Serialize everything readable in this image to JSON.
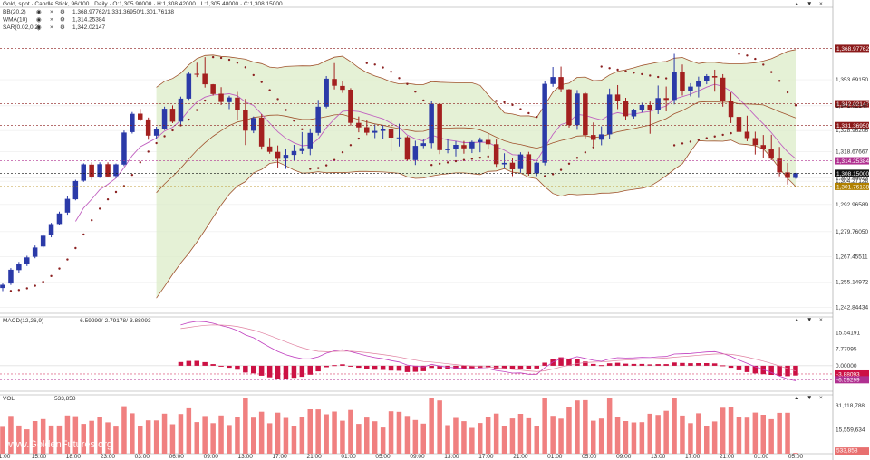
{
  "header": {
    "title": "Gold, spot · Candle Stick, 96/100 · Daily · O:1,305.90000 · H:1,308.42000 · L:1,305.48000 · C:1,308.15000"
  },
  "main_pane": {
    "indicators": [
      {
        "label": "BB(20,2)",
        "value": "1,368.97762/1,331.36950/1,301.76138",
        "color": "#8b2020"
      },
      {
        "label": "WMA(10)",
        "value": "1,314.25384",
        "color": "#c060c0"
      },
      {
        "label": "SAR(0.02,0.2)",
        "value": "1,342.02147",
        "color": "#8b2020"
      }
    ],
    "price_axis": [
      "1,305.89623",
      "1,353.69150",
      "1,341.02147",
      "1,328.96206",
      "1,318.67667",
      "1,304.27128",
      "1,292.96589",
      "1,279.76050",
      "1,267.45511",
      "1,255.14972",
      "1,242.84434"
    ],
    "tags": [
      {
        "text": "1,368.97762",
        "color": "#8b1a1a"
      },
      {
        "text": "1,342.02147",
        "color": "#8b1a1a"
      },
      {
        "text": "1,331.36950",
        "color": "#8b1a1a"
      },
      {
        "text": "1,314.25384",
        "color": "#b03090"
      },
      {
        "text": "1,308.15000",
        "color": "#111111"
      },
      {
        "text": "1,301.76138",
        "color": "#b08000"
      }
    ]
  },
  "macd_pane": {
    "label": "MACD(12,26,9)",
    "value": "-6.59299/-2.79178/-3.88093",
    "axis": [
      "15.54191",
      "7.77095",
      "0.00000"
    ],
    "tags": [
      {
        "text": "-3.88093",
        "color": "#cc1144"
      },
      {
        "text": "-6.59299",
        "color": "#b03090"
      }
    ]
  },
  "vol_pane": {
    "label": "VOL",
    "value": "533,858",
    "axis": [
      "31,118,788",
      "15,559,634"
    ],
    "tag": {
      "text": "533,858",
      "color": "#e87070"
    }
  },
  "time_axis": [
    "1:00",
    "15:00",
    "18:00",
    "23:00",
    "03:00",
    "06:00",
    "09:00",
    "13:00",
    "17:00",
    "21:00",
    "01:00",
    "05:00",
    "09:00",
    "13:00",
    "17:00",
    "21:00",
    "01:00",
    "05:00",
    "09:00",
    "13:00",
    "17:00",
    "21:00",
    "01:00",
    "05:00"
  ],
  "watermark": "www.GoldenFutures.org",
  "icons": [
    "eye-icon",
    "close-icon",
    "gear-icon",
    "arrow-up-icon",
    "arrow-down-icon",
    "close-icon"
  ],
  "chart_data": {
    "type": "candlestick",
    "ylim": [
      1240,
      1389
    ],
    "grid": true,
    "candles": [
      [
        1252.3,
        1254.5,
        1250.8,
        1253.9
      ],
      [
        1254.5,
        1262.0,
        1253.8,
        1261.2
      ],
      [
        1261.0,
        1265.0,
        1259.5,
        1264.1
      ],
      [
        1264.0,
        1268.0,
        1263.0,
        1267.2
      ],
      [
        1267.5,
        1273.0,
        1266.8,
        1272.0
      ],
      [
        1272.5,
        1278.5,
        1271.9,
        1277.8
      ],
      [
        1278.0,
        1284.0,
        1277.0,
        1283.4
      ],
      [
        1283.5,
        1289.5,
        1282.8,
        1288.6
      ],
      [
        1289.0,
        1297.0,
        1288.0,
        1295.7
      ],
      [
        1295.5,
        1305.0,
        1295.0,
        1304.4
      ],
      [
        1304.5,
        1313.0,
        1304.0,
        1312.5
      ],
      [
        1312.4,
        1313.5,
        1305.0,
        1306.4
      ],
      [
        1306.4,
        1313.5,
        1305.9,
        1312.6
      ],
      [
        1312.6,
        1313.5,
        1306.2,
        1306.6
      ],
      [
        1306.8,
        1312.9,
        1305.8,
        1312.5
      ],
      [
        1312.4,
        1329.0,
        1311.7,
        1328.0
      ],
      [
        1328.2,
        1338.0,
        1327.5,
        1337.1
      ],
      [
        1337.2,
        1339.5,
        1333.5,
        1334.4
      ],
      [
        1334.4,
        1335.3,
        1324.5,
        1326.5
      ],
      [
        1326.5,
        1330.8,
        1325.1,
        1329.7
      ],
      [
        1329.8,
        1340.6,
        1329.2,
        1339.6
      ],
      [
        1339.6,
        1341.2,
        1332.6,
        1333.3
      ],
      [
        1333.3,
        1345.5,
        1331.6,
        1344.5
      ],
      [
        1344.5,
        1357.6,
        1343.9,
        1356.6
      ],
      [
        1356.6,
        1362.0,
        1355.0,
        1356.4
      ],
      [
        1356.6,
        1364.7,
        1349.9,
        1351.5
      ],
      [
        1351.5,
        1351.6,
        1346.0,
        1346.8
      ],
      [
        1346.9,
        1350.1,
        1341.4,
        1342.9
      ],
      [
        1342.8,
        1345.9,
        1339.4,
        1345.1
      ],
      [
        1345.0,
        1347.8,
        1334.3,
        1339.1
      ],
      [
        1339.1,
        1344.4,
        1321.9,
        1328.9
      ],
      [
        1328.9,
        1335.8,
        1327.7,
        1335.1
      ],
      [
        1335.2,
        1337.0,
        1319.7,
        1321.2
      ],
      [
        1321.2,
        1325.4,
        1317.7,
        1318.6
      ],
      [
        1318.6,
        1321.7,
        1311.0,
        1315.2
      ],
      [
        1315.3,
        1319.8,
        1310.3,
        1317.1
      ],
      [
        1317.1,
        1322.0,
        1314.3,
        1319.0
      ],
      [
        1319.0,
        1328.2,
        1317.6,
        1320.4
      ],
      [
        1320.3,
        1330.0,
        1317.0,
        1327.8
      ],
      [
        1327.8,
        1343.9,
        1326.6,
        1340.6
      ],
      [
        1340.6,
        1355.5,
        1339.8,
        1354.2
      ],
      [
        1354.1,
        1361.8,
        1349.0,
        1350.8
      ],
      [
        1350.7,
        1352.9,
        1347.3,
        1348.8
      ],
      [
        1348.9,
        1349.6,
        1331.3,
        1332.7
      ],
      [
        1332.7,
        1335.8,
        1328.1,
        1330.5
      ],
      [
        1330.6,
        1334.1,
        1326.7,
        1327.9
      ],
      [
        1327.9,
        1331.9,
        1325.3,
        1328.8
      ],
      [
        1328.8,
        1331.5,
        1325.0,
        1329.8
      ],
      [
        1329.7,
        1334.0,
        1318.9,
        1325.5
      ],
      [
        1325.5,
        1332.3,
        1321.2,
        1325.6
      ],
      [
        1325.7,
        1326.3,
        1314.2,
        1314.8
      ],
      [
        1314.6,
        1324.0,
        1312.2,
        1321.5
      ],
      [
        1321.5,
        1325.0,
        1320.4,
        1322.8
      ],
      [
        1322.8,
        1343.4,
        1320.4,
        1342.0
      ],
      [
        1341.9,
        1342.3,
        1317.5,
        1319.4
      ],
      [
        1319.4,
        1325.1,
        1317.9,
        1320.1
      ],
      [
        1320.1,
        1323.8,
        1316.4,
        1322.0
      ],
      [
        1321.9,
        1323.9,
        1317.7,
        1320.3
      ],
      [
        1320.3,
        1324.1,
        1318.0,
        1323.4
      ],
      [
        1323.3,
        1325.6,
        1318.4,
        1324.4
      ],
      [
        1324.4,
        1327.7,
        1320.0,
        1322.3
      ],
      [
        1322.3,
        1324.6,
        1311.3,
        1312.6
      ],
      [
        1312.5,
        1317.9,
        1310.5,
        1313.2
      ],
      [
        1313.3,
        1315.6,
        1306.8,
        1310.1
      ],
      [
        1310.2,
        1318.4,
        1308.4,
        1317.3
      ],
      [
        1317.4,
        1318.6,
        1307.0,
        1307.9
      ],
      [
        1308.1,
        1313.8,
        1306.8,
        1313.3
      ],
      [
        1313.3,
        1353.0,
        1312.0,
        1351.7
      ],
      [
        1351.6,
        1359.9,
        1350.3,
        1355.0
      ],
      [
        1355.0,
        1360.1,
        1347.6,
        1349.1
      ],
      [
        1349.0,
        1349.2,
        1330.4,
        1331.6
      ],
      [
        1331.6,
        1348.7,
        1329.3,
        1347.0
      ],
      [
        1347.0,
        1347.6,
        1325.2,
        1326.8
      ],
      [
        1326.8,
        1332.9,
        1321.5,
        1324.4
      ],
      [
        1324.5,
        1331.0,
        1321.8,
        1327.1
      ],
      [
        1327.1,
        1349.4,
        1324.7,
        1346.5
      ],
      [
        1346.5,
        1351.1,
        1339.4,
        1343.5
      ],
      [
        1343.4,
        1344.9,
        1334.2,
        1335.9
      ],
      [
        1335.9,
        1339.6,
        1334.8,
        1339.1
      ],
      [
        1339.1,
        1342.5,
        1337.8,
        1341.4
      ],
      [
        1341.4,
        1343.1,
        1327.4,
        1339.1
      ],
      [
        1339.2,
        1350.9,
        1337.0,
        1344.8
      ],
      [
        1344.8,
        1350.4,
        1338.3,
        1343.9
      ],
      [
        1343.9,
        1366.3,
        1341.7,
        1357.4
      ],
      [
        1357.4,
        1361.1,
        1346.0,
        1348.2
      ],
      [
        1348.1,
        1352.0,
        1345.6,
        1350.4
      ],
      [
        1350.4,
        1355.2,
        1345.1,
        1353.3
      ],
      [
        1353.3,
        1356.4,
        1351.5,
        1355.5
      ],
      [
        1355.5,
        1358.6,
        1347.9,
        1354.8
      ],
      [
        1354.7,
        1356.4,
        1340.6,
        1343.3
      ],
      [
        1343.3,
        1347.5,
        1332.6,
        1335.6
      ],
      [
        1335.6,
        1340.0,
        1326.8,
        1328.3
      ],
      [
        1328.4,
        1336.2,
        1323.8,
        1325.3
      ],
      [
        1325.3,
        1328.4,
        1317.3,
        1321.9
      ],
      [
        1321.9,
        1326.8,
        1315.8,
        1320.2
      ],
      [
        1320.0,
        1326.9,
        1314.5,
        1315.3
      ],
      [
        1315.3,
        1321.0,
        1306.7,
        1308.6
      ],
      [
        1308.6,
        1313.2,
        1302.7,
        1305.9
      ],
      [
        1305.9,
        1308.4,
        1305.5,
        1308.2
      ]
    ]
  }
}
